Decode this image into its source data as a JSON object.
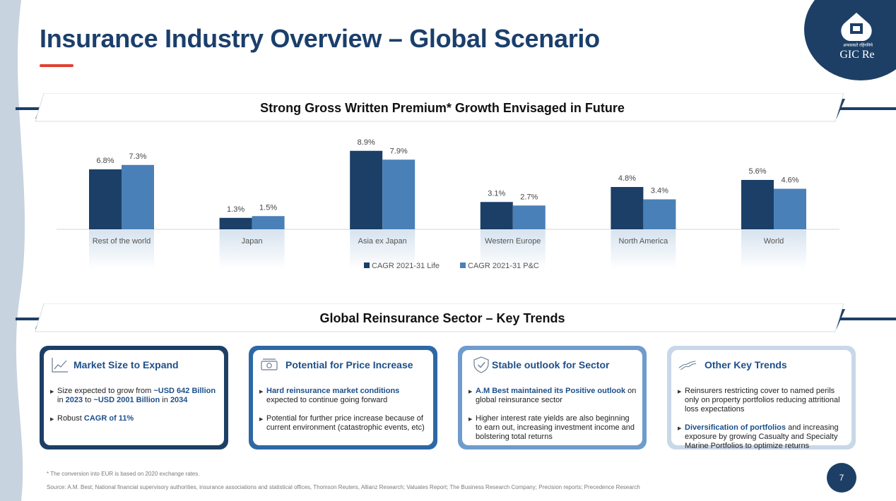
{
  "header": {
    "title": "Insurance Industry Overview – Global Scenario",
    "logo_hindi": "अफसकते रहिंगनिये",
    "logo_text": "GIC Re"
  },
  "growth_banner": {
    "title": "Strong Gross Written Premium* Growth Envisaged in Future"
  },
  "chart_data": {
    "type": "bar",
    "title": "Strong Gross Written Premium* Growth Envisaged in Future",
    "categories": [
      "Rest of the world",
      "Japan",
      "Asia ex Japan",
      "Western Europe",
      "North America",
      "World"
    ],
    "series": [
      {
        "name": "CAGR 2021-31 Life",
        "values": [
          6.8,
          1.3,
          8.9,
          3.1,
          4.8,
          5.6
        ],
        "labels": [
          "6.8%",
          "1.3%",
          "8.9%",
          "3.1%",
          "4.8%",
          "5.6%"
        ],
        "color": "#1b3f66"
      },
      {
        "name": "CAGR 2021-31 P&C",
        "values": [
          7.3,
          1.5,
          7.9,
          2.7,
          3.4,
          4.6
        ],
        "labels": [
          "7.3%",
          "1.5%",
          "7.9%",
          "2.7%",
          "3.4%",
          "4.6%"
        ],
        "color": "#4a80b8"
      }
    ],
    "xlabel": "",
    "ylabel": "",
    "ylim": [
      0,
      10
    ],
    "grid": false,
    "legend_position": "bottom-center"
  },
  "trends_banner": {
    "title": "Global Reinsurance Sector – Key Trends"
  },
  "cards": [
    {
      "title": "Market Size to Expand",
      "icon": "line-chart-icon",
      "border_color": "#1d3f66",
      "bullets": [
        [
          {
            "text": "Size expected to grow from "
          },
          {
            "text": "~USD 642 Billion",
            "hl": true
          },
          {
            "text": " in "
          },
          {
            "text": "2023",
            "hl": true
          },
          {
            "text": " to "
          },
          {
            "text": "~USD 2001 Billion",
            "hl": true
          },
          {
            "text": " in "
          },
          {
            "text": "2034",
            "hl": true
          }
        ],
        [
          {
            "text": "Robust "
          },
          {
            "text": "CAGR  of 11%",
            "hl": true
          }
        ]
      ]
    },
    {
      "title": "Potential for Price Increase",
      "icon": "money-icon",
      "border_color": "#2e68a4",
      "bullets": [
        [
          {
            "text": "Hard reinsurance market conditions",
            "hl": true
          },
          {
            "text": " expected to  continue going forward"
          }
        ],
        [
          {
            "text": "Potential for further price increase because of current environment  (catastrophic events, etc)"
          }
        ]
      ]
    },
    {
      "title": "Stable outlook for Sector",
      "icon": "shield-check-icon",
      "border_color": "#6f9ccb",
      "bullets": [
        [
          {
            "text": "A.M Best maintained its Positive outlook",
            "hl": true
          },
          {
            "text": " on global reinsurance sector"
          }
        ],
        [
          {
            "text": "Higher interest rate yields are also beginning to earn out, increasing investment income and bolstering total returns"
          }
        ]
      ]
    },
    {
      "title": "Other Key Trends",
      "icon": "handshake-icon",
      "border_color": "#c9d8e8",
      "bullets": [
        [
          {
            "text": "Reinsurers restricting cover to named perils only on property portfolios reducing attritional loss expectations"
          }
        ],
        [
          {
            "text": "Diversification of portfolios",
            "hl": true
          },
          {
            "text": " and increasing exposure by growing Casualty and Specialty Marine Portfolios to optimize returns"
          }
        ]
      ]
    }
  ],
  "footer": {
    "note": "* The conversion into EUR is based on 2020 exchange rates.",
    "source": "Source: A.M. Best; National financial supervisory authorities, insurance associations and statistical offices, Thomson Reuters, Allianz Research; Valuates Report; The Business Research Company; Precision reports; Precedence Research",
    "page_number": "7"
  }
}
